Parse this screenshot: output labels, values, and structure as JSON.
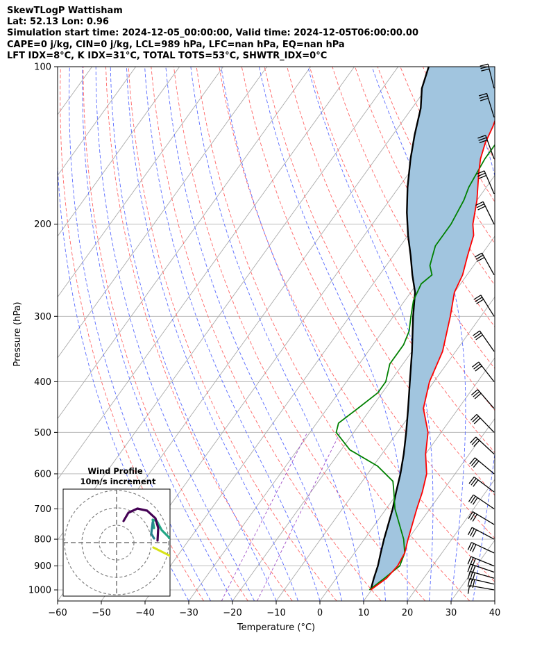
{
  "header": {
    "title": "SkewTLogP Wattisham",
    "location": "Lat: 52.13   Lon: 0.96",
    "simulation": "Simulation start time: 2024-12-05_00:00:00, Valid time: 2024-12-05T06:00:00.00",
    "indices1": "CAPE=0 j/kg, CIN=0 j/kg, LCL=989 hPa, LFC=nan hPa, EQ=nan hPa",
    "indices2": "LFT IDX=8°C, K IDX=31°C, TOTAL TOTS=53°C, SHWTR_IDX=0°C"
  },
  "colors": {
    "temperature": "#ff0000",
    "dewpoint": "#008000",
    "parcel": "#000000",
    "shade": "#a1c5df",
    "dry_adiabat": "#ff6666",
    "moist_adiabat": "#5a6cff",
    "mixing_ratio": "#a050c8",
    "isotherm": "#aaaaaa"
  },
  "chart_data": {
    "type": "line",
    "xlabel": "Temperature (°C)",
    "ylabel": "Pressure (hPa)",
    "xlim": [
      -60,
      40
    ],
    "ylim": [
      1050,
      100
    ],
    "y_scale": "log",
    "x_ticks": [
      "−60",
      "−50",
      "−40",
      "−30",
      "−20",
      "−10",
      "0",
      "10",
      "20",
      "30",
      "40"
    ],
    "y_ticks": [
      "100",
      "200",
      "300",
      "400",
      "500",
      "600",
      "700",
      "800",
      "900",
      "1000"
    ],
    "grid": true,
    "series": [
      {
        "role": "temperature",
        "points": [
          [
            9.8,
            1000
          ],
          [
            11.5,
            950
          ],
          [
            12,
            900
          ],
          [
            11.5,
            850
          ],
          [
            10,
            800
          ],
          [
            7,
            700
          ],
          [
            5.5,
            650
          ],
          [
            3.5,
            600
          ],
          [
            0,
            550
          ],
          [
            -3,
            500
          ],
          [
            -8,
            450
          ],
          [
            -11,
            400
          ],
          [
            -13,
            350
          ],
          [
            -17,
            300
          ],
          [
            -20,
            270
          ],
          [
            -21,
            250
          ],
          [
            -23,
            230
          ],
          [
            -25,
            210
          ],
          [
            -27,
            200
          ],
          [
            -30,
            180
          ],
          [
            -34,
            160
          ],
          [
            -36,
            150
          ],
          [
            -37.5,
            140
          ],
          [
            -38.5,
            130
          ],
          [
            -40,
            120
          ],
          [
            -41,
            110
          ],
          [
            -42,
            100
          ]
        ]
      },
      {
        "role": "dewpoint",
        "points": [
          [
            9.5,
            1000
          ],
          [
            11,
            950
          ],
          [
            12.5,
            900
          ],
          [
            11.5,
            850
          ],
          [
            9,
            800
          ],
          [
            2,
            700
          ],
          [
            -1,
            650
          ],
          [
            -3,
            620
          ],
          [
            -9,
            580
          ],
          [
            -18,
            540
          ],
          [
            -24,
            500
          ],
          [
            -25,
            480
          ],
          [
            -23,
            450
          ],
          [
            -21,
            420
          ],
          [
            -21,
            400
          ],
          [
            -23,
            370
          ],
          [
            -23,
            340
          ],
          [
            -24,
            320
          ],
          [
            -26,
            300
          ],
          [
            -28,
            280
          ],
          [
            -29,
            260
          ],
          [
            -28,
            250
          ],
          [
            -30,
            240
          ],
          [
            -31,
            230
          ],
          [
            -32,
            220
          ],
          [
            -32,
            200
          ],
          [
            -33,
            180
          ],
          [
            -34,
            170
          ],
          [
            -35,
            150
          ],
          [
            -35,
            140
          ],
          [
            -35,
            130
          ],
          [
            -36,
            120
          ],
          [
            -37,
            110
          ],
          [
            -38,
            100
          ]
        ]
      },
      {
        "role": "parcel",
        "points": [
          [
            9.8,
            1000
          ],
          [
            8.6,
            950
          ],
          [
            7.5,
            900
          ],
          [
            6,
            850
          ],
          [
            4.5,
            800
          ],
          [
            1.5,
            700
          ],
          [
            -0.5,
            650
          ],
          [
            -2.5,
            600
          ],
          [
            -5,
            550
          ],
          [
            -8,
            500
          ],
          [
            -11.5,
            450
          ],
          [
            -15.5,
            400
          ],
          [
            -20,
            350
          ],
          [
            -25.5,
            300
          ],
          [
            -29,
            270
          ],
          [
            -32.5,
            250
          ],
          [
            -36,
            230
          ],
          [
            -40,
            210
          ],
          [
            -44,
            190
          ],
          [
            -48,
            170
          ],
          [
            -52,
            150
          ],
          [
            -55,
            135
          ],
          [
            -58,
            120
          ],
          [
            -61,
            110
          ],
          [
            -63,
            100
          ]
        ]
      }
    ],
    "wind_barbs": [
      {
        "pressure": 1000,
        "u": 0,
        "v": 0,
        "barb": "short"
      },
      {
        "pressure": 975,
        "u": 0,
        "v": 0
      },
      {
        "pressure": 950,
        "u": 0,
        "v": 0
      },
      {
        "pressure": 925,
        "u": 0,
        "v": 0
      },
      {
        "pressure": 900,
        "u": 0,
        "v": 0
      },
      {
        "pressure": 850,
        "u": 0,
        "v": 0
      },
      {
        "pressure": 800,
        "u": 0,
        "v": 0
      },
      {
        "pressure": 750,
        "u": 0,
        "v": 0
      },
      {
        "pressure": 700,
        "u": 0,
        "v": 0
      },
      {
        "pressure": 650,
        "u": 0,
        "v": 0
      },
      {
        "pressure": 600,
        "u": 0,
        "v": 0
      },
      {
        "pressure": 550,
        "u": 0,
        "v": 0
      },
      {
        "pressure": 500,
        "u": 0,
        "v": 0
      },
      {
        "pressure": 450,
        "u": 0,
        "v": 0
      },
      {
        "pressure": 400,
        "u": 0,
        "v": 0
      },
      {
        "pressure": 350,
        "u": 0,
        "v": 0
      },
      {
        "pressure": 300,
        "u": 0,
        "v": 0
      },
      {
        "pressure": 250,
        "u": 0,
        "v": 0
      },
      {
        "pressure": 200,
        "u": 0,
        "v": 0
      },
      {
        "pressure": 175,
        "u": 0,
        "v": 0
      },
      {
        "pressure": 150,
        "u": 0,
        "v": 0
      },
      {
        "pressure": 125,
        "u": 0,
        "v": 0
      },
      {
        "pressure": 110,
        "u": 0,
        "v": 0
      }
    ],
    "barb_strength": [
      1,
      3,
      3,
      3,
      4,
      4,
      4,
      4,
      4,
      4,
      4,
      4,
      4,
      4,
      4,
      4,
      4,
      5,
      5,
      5,
      5,
      5,
      5
    ],
    "inset": {
      "title": "Wind Profile",
      "subtitle": "10m/s increment"
    }
  }
}
